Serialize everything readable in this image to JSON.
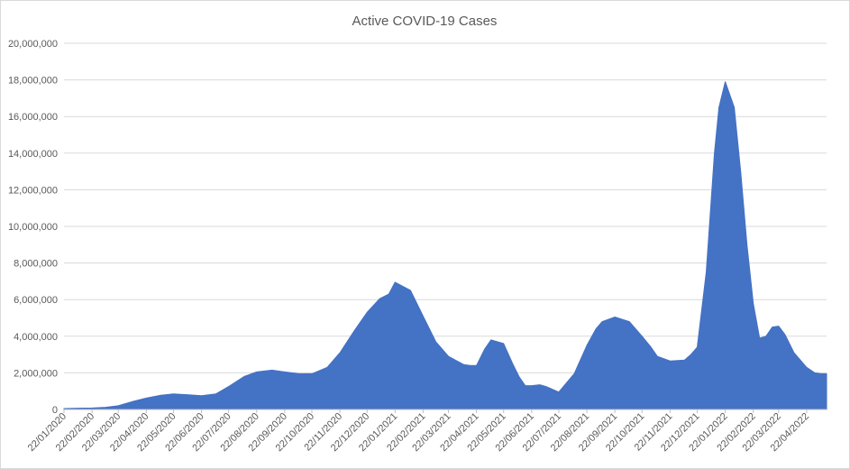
{
  "chart_data": {
    "type": "area",
    "title": "Active COVID-19 Cases",
    "xlabel": "",
    "ylabel": "",
    "ylim": [
      0,
      20000000
    ],
    "y_ticks": [
      "0",
      "2,000,000",
      "4,000,000",
      "6,000,000",
      "8,000,000",
      "10,000,000",
      "12,000,000",
      "14,000,000",
      "16,000,000",
      "18,000,000",
      "20,000,000"
    ],
    "x_ticks": [
      "22/01/2020",
      "22/02/2020",
      "22/03/2020",
      "22/04/2020",
      "22/05/2020",
      "22/06/2020",
      "22/07/2020",
      "22/08/2020",
      "22/09/2020",
      "22/10/2020",
      "22/11/2020",
      "22/12/2020",
      "22/01/2021",
      "22/02/2021",
      "22/03/2021",
      "22/04/2021",
      "22/05/2021",
      "22/06/2021",
      "22/07/2021",
      "22/08/2021",
      "22/09/2021",
      "22/10/2021",
      "22/11/2021",
      "22/12/2021",
      "22/01/2022",
      "22/02/2022",
      "22/03/2022",
      "22/04/2022"
    ],
    "grid": true,
    "legend": "none",
    "color": "#4472C4",
    "x": [
      "2020-01-22",
      "2020-02-05",
      "2020-02-22",
      "2020-03-08",
      "2020-03-22",
      "2020-04-08",
      "2020-04-22",
      "2020-05-08",
      "2020-05-22",
      "2020-06-08",
      "2020-06-22",
      "2020-07-08",
      "2020-07-22",
      "2020-08-08",
      "2020-08-22",
      "2020-09-08",
      "2020-09-22",
      "2020-10-08",
      "2020-10-22",
      "2020-11-08",
      "2020-11-22",
      "2020-12-08",
      "2020-12-22",
      "2021-01-05",
      "2021-01-15",
      "2021-01-22",
      "2021-02-08",
      "2021-02-22",
      "2021-03-08",
      "2021-03-22",
      "2021-04-08",
      "2021-04-15",
      "2021-04-22",
      "2021-05-01",
      "2021-05-08",
      "2021-05-22",
      "2021-06-01",
      "2021-06-08",
      "2021-06-15",
      "2021-06-22",
      "2021-07-01",
      "2021-07-08",
      "2021-07-22",
      "2021-08-08",
      "2021-08-22",
      "2021-09-01",
      "2021-09-08",
      "2021-09-22",
      "2021-10-08",
      "2021-10-22",
      "2021-11-01",
      "2021-11-08",
      "2021-11-22",
      "2021-12-08",
      "2021-12-15",
      "2021-12-22",
      "2022-01-01",
      "2022-01-10",
      "2022-01-15",
      "2022-01-22",
      "2022-02-01",
      "2022-02-08",
      "2022-02-15",
      "2022-02-22",
      "2022-03-01",
      "2022-03-08",
      "2022-03-15",
      "2022-03-22",
      "2022-03-29",
      "2022-04-08",
      "2022-04-15",
      "2022-04-22",
      "2022-05-01",
      "2022-05-08",
      "2022-05-14"
    ],
    "values": [
      50000,
      70000,
      80000,
      120000,
      200000,
      450000,
      620000,
      780000,
      850000,
      800000,
      750000,
      850000,
      1250000,
      1800000,
      2050000,
      2150000,
      2050000,
      1950000,
      1950000,
      2300000,
      3100000,
      4300000,
      5300000,
      6050000,
      6300000,
      6950000,
      6500000,
      5100000,
      3700000,
      2900000,
      2450000,
      2400000,
      2400000,
      3300000,
      3800000,
      3600000,
      2500000,
      1800000,
      1300000,
      1300000,
      1350000,
      1250000,
      950000,
      1950000,
      3500000,
      4400000,
      4800000,
      5050000,
      4800000,
      4000000,
      3400000,
      2900000,
      2650000,
      2700000,
      3000000,
      3400000,
      7500000,
      14000000,
      16500000,
      17900000,
      16500000,
      13000000,
      9000000,
      5800000,
      3900000,
      4000000,
      4500000,
      4550000,
      4100000,
      3100000,
      2700000,
      2300000,
      2000000,
      1950000,
      1950000
    ]
  }
}
